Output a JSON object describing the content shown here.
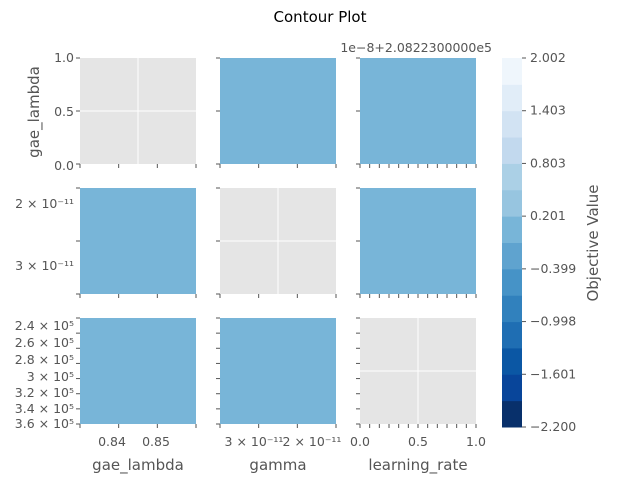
{
  "chart_data": {
    "type": "contour",
    "title": "Contour Plot",
    "parameters": [
      "gae_lambda",
      "gamma",
      "learning_rate"
    ],
    "colorbar": {
      "label": "Objective Value",
      "offset_text": "1e−8+2.0822300000e5",
      "range": [
        -2.2,
        2.002
      ],
      "ticks": [
        "2.002",
        "1.403",
        "0.803",
        "0.201",
        "−0.399",
        "−0.998",
        "−1.601",
        "−2.200"
      ],
      "colors": [
        "#08306b",
        "#08459a",
        "#0b57a4",
        "#1f6eb3",
        "#3181bd",
        "#4693c7",
        "#5fa3cf",
        "#78b5d8",
        "#97c5e0",
        "#abd0e6",
        "#c2d9ee",
        "#d2e3f3",
        "#e1edf8",
        "#eff6fc"
      ]
    },
    "fill_color": "#78b5d8",
    "empty_color": "#e5e5e5",
    "grid": true,
    "ticks": {
      "gae_lambda_y": [
        "0.0",
        "0.5",
        "1.0"
      ],
      "gamma_y": [
        "2 × 10⁻¹¹",
        "3 × 10⁻¹¹"
      ],
      "learning_rate_y": [
        "2.4 × 10⁵",
        "2.6 × 10⁵",
        "2.8 × 10⁵",
        "3 × 10⁵",
        "3.2 × 10⁵",
        "3.4 × 10⁵",
        "3.6 × 10⁵"
      ],
      "gae_lambda_x": [
        "0.84",
        "0.85"
      ],
      "gamma_x": [
        "3 × 10⁻¹¹",
        "2 × 10⁻¹¹"
      ],
      "learning_rate_x": [
        "0.0",
        "0.5",
        "1.0"
      ]
    },
    "cells": [
      {
        "row": 0,
        "col": 0,
        "filled": false
      },
      {
        "row": 0,
        "col": 1,
        "filled": true
      },
      {
        "row": 0,
        "col": 2,
        "filled": true
      },
      {
        "row": 1,
        "col": 0,
        "filled": true
      },
      {
        "row": 1,
        "col": 1,
        "filled": false
      },
      {
        "row": 1,
        "col": 2,
        "filled": true
      },
      {
        "row": 2,
        "col": 0,
        "filled": true
      },
      {
        "row": 2,
        "col": 1,
        "filled": true
      },
      {
        "row": 2,
        "col": 2,
        "filled": false
      }
    ]
  }
}
